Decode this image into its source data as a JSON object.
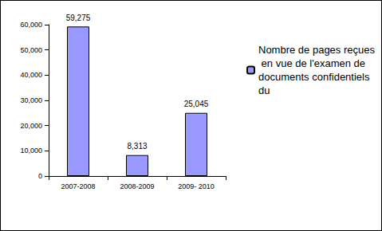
{
  "chart_data": {
    "type": "bar",
    "categories": [
      "2007-2008",
      "2008-2009",
      "2009- 2010"
    ],
    "series": [
      {
        "name": "Nombre de pages reçues en vue de l'examen de documents confidentiels du",
        "color": "#9999FF",
        "values": [
          59275,
          8313,
          25045
        ],
        "value_labels": [
          "59,275",
          "8,313",
          "25,045"
        ]
      }
    ],
    "ylim": [
      0,
      60000
    ],
    "yticks": [
      0,
      {
        "value": 10000,
        "label": "10,000"
      },
      {
        "value": 20000,
        "label": "20,000"
      },
      {
        "value": 30000,
        "label": "30,000"
      },
      {
        "value": 40000,
        "label": "40,000"
      },
      {
        "value": 50000,
        "label": "50,000"
      },
      {
        "value": 60000,
        "label": "60,000"
      }
    ],
    "grid": false,
    "legend": "right",
    "data_labels": true
  }
}
